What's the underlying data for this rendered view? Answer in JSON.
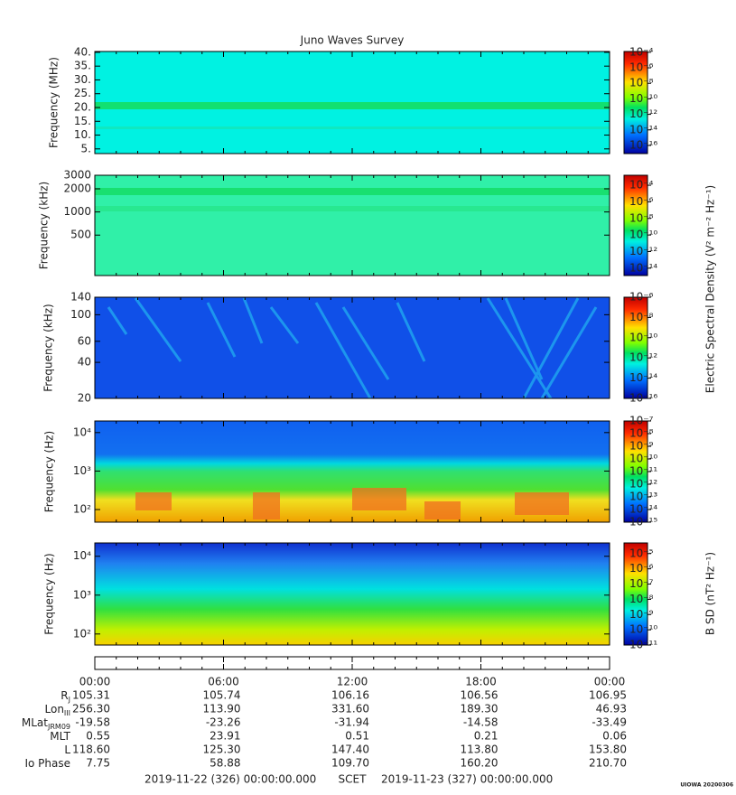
{
  "title": "Juno Waves Survey",
  "panels": [
    {
      "ylabel": "Frequency (MHz)",
      "log": false,
      "ylim": [
        3.3,
        40.3
      ],
      "yticks": [
        {
          "value": 5,
          "label": "5."
        },
        {
          "value": 10,
          "label": "10."
        },
        {
          "value": 15,
          "label": "15."
        },
        {
          "value": 20,
          "label": "20."
        },
        {
          "value": 25,
          "label": "25."
        },
        {
          "value": 30,
          "label": "30."
        },
        {
          "value": 35,
          "label": "35."
        },
        {
          "value": 40,
          "label": "40."
        }
      ],
      "colorbar": {
        "zlim": [
          8.9e-18,
          0.000126
        ],
        "ticks": [
          {
            "value": 0.0001,
            "label": "10⁻⁴"
          },
          {
            "value": 1e-06,
            "label": "10⁻⁶"
          },
          {
            "value": 1e-08,
            "label": "10⁻⁸"
          },
          {
            "value": 1e-10,
            "label": "10⁻¹⁰"
          },
          {
            "value": 1e-12,
            "label": "10⁻¹²"
          },
          {
            "value": 1e-14,
            "label": "10⁻¹⁴"
          },
          {
            "value": 1e-16,
            "label": "10⁻¹⁶"
          }
        ]
      }
    },
    {
      "ylabel": "Frequency (kHz)",
      "log": true,
      "ylim": [
        149,
        3000
      ],
      "yticks": [
        500,
        1000,
        2000,
        3000
      ],
      "colorbar": {
        "zlim": [
          1.3e-15,
          0.0016
        ],
        "ticks": [
          {
            "value": 0.0001,
            "label": "10⁻⁴"
          },
          {
            "value": 1e-06,
            "label": "10⁻⁶"
          },
          {
            "value": 1e-08,
            "label": "10⁻⁸"
          },
          {
            "value": 1e-10,
            "label": "10⁻¹⁰"
          },
          {
            "value": 1e-12,
            "label": "10⁻¹²"
          },
          {
            "value": 1e-14,
            "label": "10⁻¹⁴"
          }
        ]
      }
    },
    {
      "ylabel": "Frequency (kHz)",
      "log": true,
      "ylim": [
        20,
        140
      ],
      "yticks": [
        20,
        40,
        60,
        100,
        140
      ],
      "colorbar": {
        "zlim": [
          1e-16,
          1e-06
        ],
        "ticks": [
          {
            "value": 1e-06,
            "label": "10⁻⁶"
          },
          {
            "value": 1e-08,
            "label": "10⁻⁸"
          },
          {
            "value": 1e-10,
            "label": "10⁻¹⁰"
          },
          {
            "value": 1e-12,
            "label": "10⁻¹²"
          },
          {
            "value": 1e-14,
            "label": "10⁻¹⁴"
          },
          {
            "value": 1e-16,
            "label": "10⁻¹⁶"
          }
        ]
      }
    },
    {
      "ylabel": "Frequency (Hz)",
      "log": true,
      "ylim": [
        47,
        20000
      ],
      "yticks": [
        {
          "value": 100,
          "label": "10²"
        },
        {
          "value": 1000,
          "label": "10³"
        },
        {
          "value": 10000,
          "label": "10⁴"
        }
      ],
      "colorbar": {
        "zlim": [
          1e-15,
          1e-07
        ],
        "ticks": [
          {
            "value": 1e-07,
            "label": "10⁻⁷"
          },
          {
            "value": 1e-08,
            "label": "10⁻⁸"
          },
          {
            "value": 1e-09,
            "label": "10⁻⁹"
          },
          {
            "value": 1e-10,
            "label": "10⁻¹⁰"
          },
          {
            "value": 1e-11,
            "label": "10⁻¹¹"
          },
          {
            "value": 1e-12,
            "label": "10⁻¹²"
          },
          {
            "value": 1e-13,
            "label": "10⁻¹³"
          },
          {
            "value": 1e-14,
            "label": "10⁻¹⁴"
          },
          {
            "value": 1e-15,
            "label": "10⁻¹⁵"
          }
        ]
      }
    },
    {
      "ylabel": "Frequency (Hz)",
      "log": true,
      "ylim": [
        52,
        22000
      ],
      "yticks": [
        {
          "value": 100,
          "label": "10²"
        },
        {
          "value": 1000,
          "label": "10³"
        },
        {
          "value": 10000,
          "label": "10⁴"
        }
      ],
      "colorbar": {
        "zlim": [
          1e-11,
          5e-05
        ],
        "ticks": [
          {
            "value": 1e-05,
            "label": "10⁻⁵"
          },
          {
            "value": 1e-06,
            "label": "10⁻⁶"
          },
          {
            "value": 1e-07,
            "label": "10⁻⁷"
          },
          {
            "value": 1e-08,
            "label": "10⁻⁸"
          },
          {
            "value": 1e-09,
            "label": "10⁻⁹"
          },
          {
            "value": 1e-10,
            "label": "10⁻¹⁰"
          },
          {
            "value": 1e-11,
            "label": "10⁻¹¹"
          }
        ]
      }
    }
  ],
  "colorbar_labels": [
    "Electric Spectral Density (V² m⁻² Hz⁻¹)",
    "B SD (nT² Hz⁻¹)"
  ],
  "time_ticks": [
    "00:00",
    "06:00",
    "12:00",
    "18:00",
    "00:00"
  ],
  "ephemeris": [
    {
      "label": "R",
      "sub": "J",
      "values": [
        "105.31",
        "105.74",
        "106.16",
        "106.56",
        "106.95"
      ]
    },
    {
      "label": "Lon",
      "sub": "III",
      "values": [
        "256.30",
        "113.90",
        "331.60",
        "189.30",
        "46.93"
      ]
    },
    {
      "label": "MLat",
      "sub": "JRM09",
      "values": [
        "-19.58",
        "-23.26",
        "-31.94",
        "-14.58",
        "-33.49"
      ]
    },
    {
      "label": "MLT",
      "values": [
        "0.55",
        "23.91",
        "0.51",
        "0.21",
        "0.06"
      ]
    },
    {
      "label": "L",
      "values": [
        "118.60",
        "125.30",
        "147.40",
        "113.80",
        "153.80"
      ]
    },
    {
      "label": "Io Phase",
      "values": [
        "7.75",
        "58.88",
        "109.70",
        "160.20",
        "210.70"
      ]
    }
  ],
  "footer": {
    "start": "2019-11-22 (326) 00:00:00.000",
    "scet": "SCET",
    "end": "2019-11-23 (327) 00:00:00.000",
    "stamp": "UIOWA 20200306"
  }
}
